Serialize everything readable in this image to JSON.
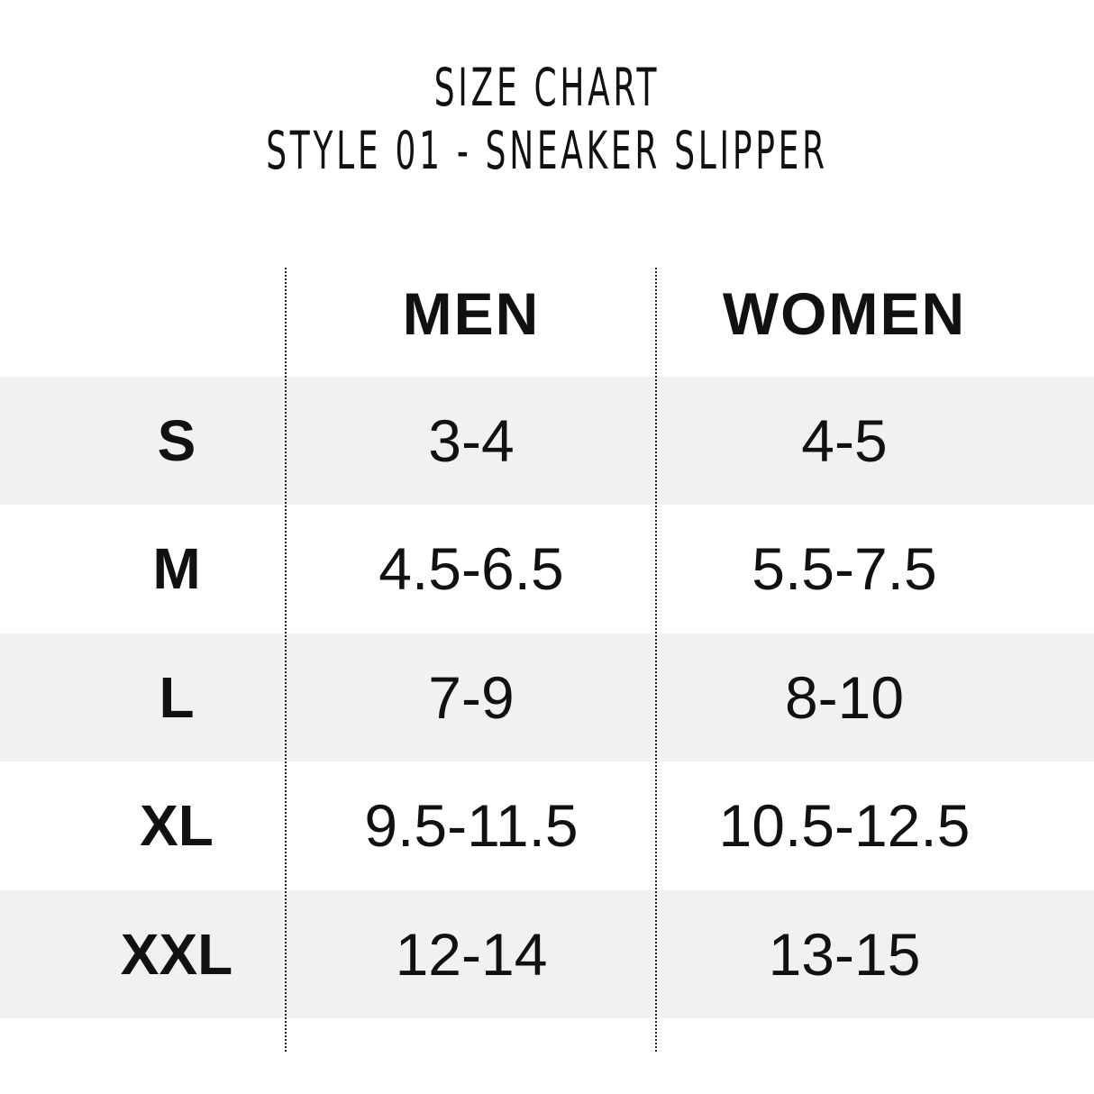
{
  "title": {
    "line1": "SIZE CHART",
    "line2": "STYLE 01 - SNEAKER SLIPPER"
  },
  "table": {
    "headers": [
      "",
      "MEN",
      "WOMEN"
    ],
    "rows": [
      {
        "size": "S",
        "men": "3-4",
        "women": "4-5"
      },
      {
        "size": "M",
        "men": "4.5-6.5",
        "women": "5.5-7.5"
      },
      {
        "size": "L",
        "men": "7-9",
        "women": "8-10"
      },
      {
        "size": "XL",
        "men": "9.5-11.5",
        "women": "10.5-12.5"
      },
      {
        "size": "XXL",
        "men": "12-14",
        "women": "13-15"
      }
    ],
    "stripe_color": "#f0f1f3"
  }
}
